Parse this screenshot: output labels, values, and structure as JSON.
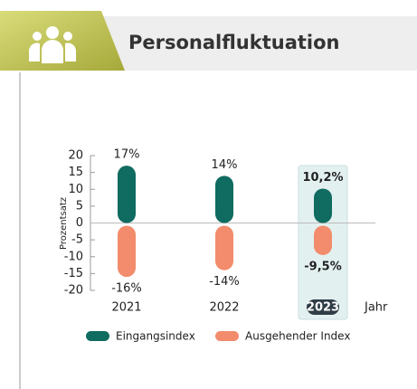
{
  "chart_data": {
    "type": "bar",
    "title": "Personalfluktuation",
    "y_label": "Prozentsatz",
    "x_label": "Jahr",
    "categories": [
      "2021",
      "2022",
      "2023"
    ],
    "series": [
      {
        "name": "Eingangsindex",
        "color": "#106b60",
        "values": [
          17,
          14,
          10.2
        ],
        "value_labels": [
          "17%",
          "14%",
          "10,2%"
        ]
      },
      {
        "name": "Ausgehender Index",
        "color": "#f28c6c",
        "values": [
          -16,
          -14,
          -9.5
        ],
        "value_labels": [
          "-16%",
          "-14%",
          "-9,5%"
        ]
      }
    ],
    "ylim": [
      -20,
      20
    ],
    "yticks": [
      -20,
      -15,
      -10,
      -5,
      0,
      5,
      10,
      15,
      20
    ],
    "highlight": "2023"
  }
}
